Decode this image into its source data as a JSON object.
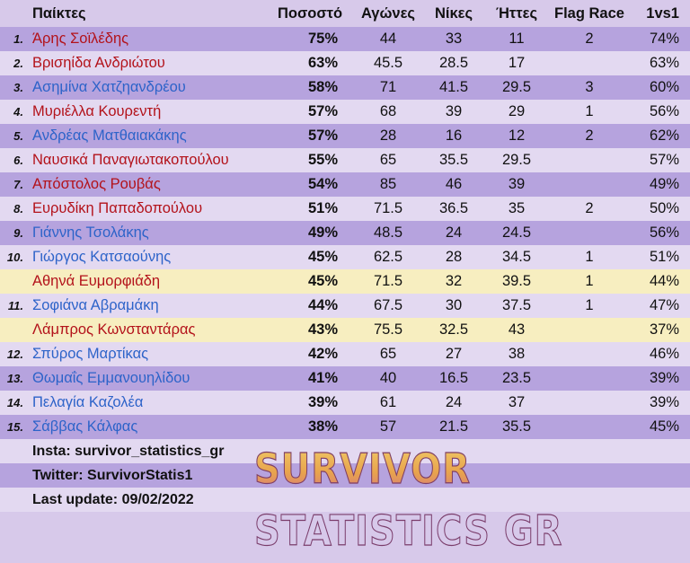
{
  "header": {
    "players": "Παίκτες",
    "percent": "Ποσοστό",
    "games": "Αγώνες",
    "wins": "Νίκες",
    "losses": "Ήττες",
    "flag_race": "Flag Race",
    "one_vs_one": "1vs1"
  },
  "colors": {
    "team_red": "#b3121a",
    "team_blue": "#2d63c9",
    "row_dark": "#b6a3de",
    "row_light": "#e3d9f1",
    "row_highlight": "#f7eec0"
  },
  "rows": [
    {
      "rank": "1.",
      "name": "Άρης Σοϊλέδης",
      "team": "red",
      "pct": "75%",
      "games": "44",
      "wins": "33",
      "losses": "11",
      "flag": "2",
      "vs": "74%"
    },
    {
      "rank": "2.",
      "name": "Βρισηίδα Ανδριώτου",
      "team": "red",
      "pct": "63%",
      "games": "45.5",
      "wins": "28.5",
      "losses": "17",
      "flag": "",
      "vs": "63%"
    },
    {
      "rank": "3.",
      "name": "Ασημίνα Χατζηανδρέου",
      "team": "blue",
      "pct": "58%",
      "games": "71",
      "wins": "41.5",
      "losses": "29.5",
      "flag": "3",
      "vs": "60%"
    },
    {
      "rank": "4.",
      "name": "Μυριέλλα Κουρεντή",
      "team": "red",
      "pct": "57%",
      "games": "68",
      "wins": "39",
      "losses": "29",
      "flag": "1",
      "vs": "56%"
    },
    {
      "rank": "5.",
      "name": "Ανδρέας Ματθαιακάκης",
      "team": "blue",
      "pct": "57%",
      "games": "28",
      "wins": "16",
      "losses": "12",
      "flag": "2",
      "vs": "62%"
    },
    {
      "rank": "6.",
      "name": "Ναυσικά Παναγιωτακοπούλου",
      "team": "red",
      "pct": "55%",
      "games": "65",
      "wins": "35.5",
      "losses": "29.5",
      "flag": "",
      "vs": "57%"
    },
    {
      "rank": "7.",
      "name": "Απόστολος Ρουβάς",
      "team": "red",
      "pct": "54%",
      "games": "85",
      "wins": "46",
      "losses": "39",
      "flag": "",
      "vs": "49%"
    },
    {
      "rank": "8.",
      "name": "Ευρυδίκη Παπαδοπούλου",
      "team": "red",
      "pct": "51%",
      "games": "71.5",
      "wins": "36.5",
      "losses": "35",
      "flag": "2",
      "vs": "50%"
    },
    {
      "rank": "9.",
      "name": "Γιάννης Τσολάκης",
      "team": "blue",
      "pct": "49%",
      "games": "48.5",
      "wins": "24",
      "losses": "24.5",
      "flag": "",
      "vs": "56%"
    },
    {
      "rank": "10.",
      "name": "Γιώργος Κατσαούνης",
      "team": "blue",
      "pct": "45%",
      "games": "62.5",
      "wins": "28",
      "losses": "34.5",
      "flag": "1",
      "vs": "51%"
    },
    {
      "rank": "",
      "name": "Αθηνά Ευμορφιάδη",
      "team": "red",
      "pct": "45%",
      "games": "71.5",
      "wins": "32",
      "losses": "39.5",
      "flag": "1",
      "vs": "44%",
      "highlight": true
    },
    {
      "rank": "11.",
      "name": "Σοφιάνα Αβραμάκη",
      "team": "blue",
      "pct": "44%",
      "games": "67.5",
      "wins": "30",
      "losses": "37.5",
      "flag": "1",
      "vs": "47%"
    },
    {
      "rank": "",
      "name": "Λάμπρος Κωνσταντάρας",
      "team": "red",
      "pct": "43%",
      "games": "75.5",
      "wins": "32.5",
      "losses": "43",
      "flag": "",
      "vs": "37%",
      "highlight": true
    },
    {
      "rank": "12.",
      "name": "Σπύρος Μαρτίκας",
      "team": "blue",
      "pct": "42%",
      "games": "65",
      "wins": "27",
      "losses": "38",
      "flag": "",
      "vs": "46%"
    },
    {
      "rank": "13.",
      "name": "Θωμαΐς Εμμανουηλίδου",
      "team": "blue",
      "pct": "41%",
      "games": "40",
      "wins": "16.5",
      "losses": "23.5",
      "flag": "",
      "vs": "39%"
    },
    {
      "rank": "14.",
      "name": "Πελαγία Καζολέα",
      "team": "blue",
      "pct": "39%",
      "games": "61",
      "wins": "24",
      "losses": "37",
      "flag": "",
      "vs": "39%"
    },
    {
      "rank": "15.",
      "name": "Σάββας Κάλφας",
      "team": "blue",
      "pct": "38%",
      "games": "57",
      "wins": "21.5",
      "losses": "35.5",
      "flag": "",
      "vs": "45%"
    }
  ],
  "footer": {
    "insta": "Insta: survivor_statistics_gr",
    "twitter": "Twitter: SurvivorStatis1",
    "updated": "Last update: 09/02/2022",
    "brand": "SURVIVOR STATISTICS GR"
  }
}
